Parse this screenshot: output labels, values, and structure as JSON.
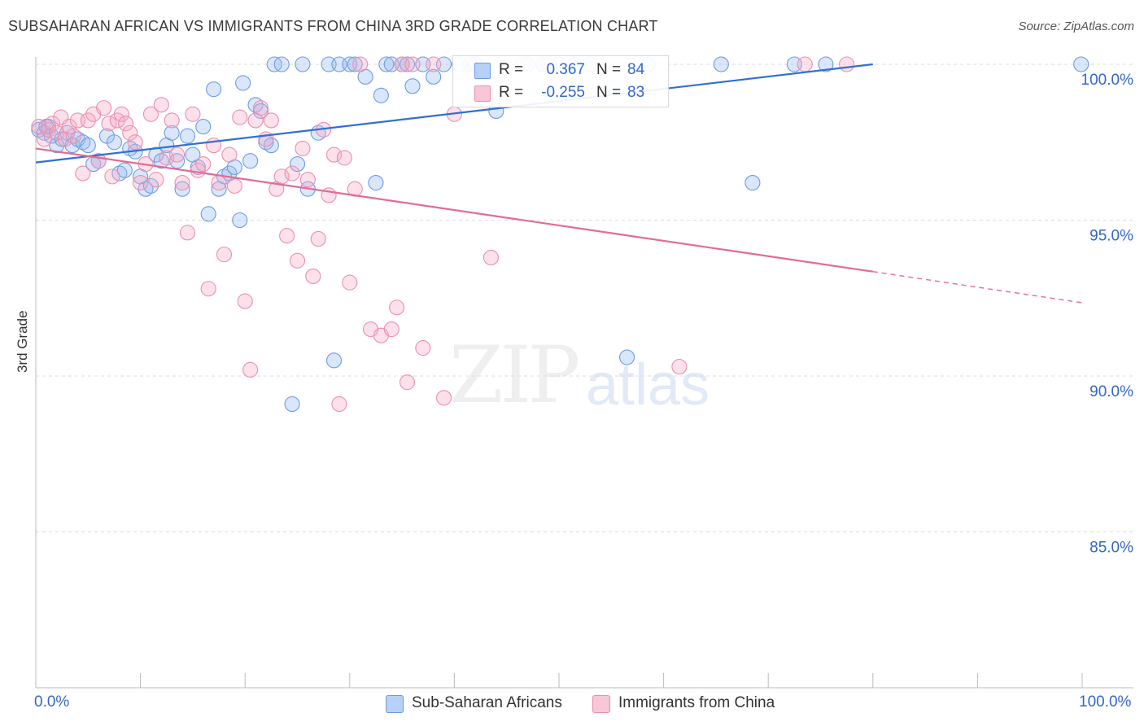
{
  "title": "SUBSAHARAN AFRICAN VS IMMIGRANTS FROM CHINA 3RD GRADE CORRELATION CHART",
  "source": "Source: ZipAtlas.com",
  "watermark": {
    "zip": "ZIP",
    "atlas": "atlas"
  },
  "legend": {
    "r_label": "R =",
    "n_label": "N =",
    "rows": [
      {
        "r": "0.367",
        "n": "84",
        "color": "#6b9be6"
      },
      {
        "r": "-0.255",
        "n": "83",
        "color": "#ec8eac"
      }
    ]
  },
  "bottom_legend": [
    {
      "label": "Sub-Saharan Africans",
      "fill": "#b7d0f5",
      "stroke": "#6b9be6"
    },
    {
      "label": "Immigrants from China",
      "fill": "#f8c6d6",
      "stroke": "#ec8eac"
    }
  ],
  "chart_data": {
    "type": "scatter",
    "title": "SUBSAHARAN AFRICAN VS IMMIGRANTS FROM CHINA 3RD GRADE CORRELATION CHART",
    "xlabel": "",
    "ylabel": "3rd Grade",
    "xlim": [
      0,
      100
    ],
    "ylim": [
      80.5,
      100.5
    ],
    "x_tick_labels": [
      "0.0%",
      "100.0%"
    ],
    "y_ticks": [
      85,
      90,
      95,
      100
    ],
    "y_tick_labels": [
      "85.0%",
      "90.0%",
      "95.0%",
      "100.0%"
    ],
    "grid": true,
    "series": [
      {
        "name": "Sub-Saharan Africans",
        "color": "#6b9be6",
        "trend": {
          "x0": 0,
          "y0": 96.85,
          "x1": 80,
          "y1": 100.0
        },
        "points": [
          [
            0.3,
            97.9
          ],
          [
            0.8,
            97.8
          ],
          [
            1.2,
            98.0
          ],
          [
            1.5,
            97.7
          ],
          [
            2.0,
            97.4
          ],
          [
            2.5,
            97.6
          ],
          [
            3.0,
            97.8
          ],
          [
            3.5,
            97.4
          ],
          [
            4.0,
            97.6
          ],
          [
            4.5,
            97.5
          ],
          [
            5.0,
            97.4
          ],
          [
            5.5,
            96.8
          ],
          [
            6.0,
            96.9
          ],
          [
            6.8,
            97.7
          ],
          [
            7.5,
            97.5
          ],
          [
            8.0,
            96.5
          ],
          [
            8.5,
            96.6
          ],
          [
            9.0,
            97.3
          ],
          [
            9.5,
            97.2
          ],
          [
            10.0,
            96.4
          ],
          [
            10.5,
            96.0
          ],
          [
            11.0,
            96.1
          ],
          [
            11.5,
            97.1
          ],
          [
            12.0,
            96.9
          ],
          [
            12.5,
            97.4
          ],
          [
            13.0,
            97.8
          ],
          [
            13.5,
            96.9
          ],
          [
            14.0,
            96.0
          ],
          [
            14.5,
            97.7
          ],
          [
            15.0,
            97.1
          ],
          [
            15.5,
            96.7
          ],
          [
            16.0,
            98.0
          ],
          [
            16.5,
            95.2
          ],
          [
            17.0,
            99.2
          ],
          [
            17.5,
            96.0
          ],
          [
            18.0,
            96.4
          ],
          [
            18.5,
            96.5
          ],
          [
            19.0,
            96.7
          ],
          [
            19.5,
            95.0
          ],
          [
            19.8,
            99.4
          ],
          [
            20.5,
            96.9
          ],
          [
            21.0,
            98.7
          ],
          [
            21.5,
            98.5
          ],
          [
            22.0,
            97.5
          ],
          [
            22.5,
            97.4
          ],
          [
            22.8,
            100.0
          ],
          [
            23.5,
            100.0
          ],
          [
            24.5,
            89.1
          ],
          [
            25.0,
            96.8
          ],
          [
            25.5,
            100.0
          ],
          [
            26.0,
            96.0
          ],
          [
            27.0,
            97.8
          ],
          [
            28.0,
            100.0
          ],
          [
            28.5,
            90.5
          ],
          [
            29.0,
            100.0
          ],
          [
            30.0,
            100.0
          ],
          [
            30.5,
            100.0
          ],
          [
            31.5,
            99.6
          ],
          [
            32.5,
            96.2
          ],
          [
            33.0,
            99.0
          ],
          [
            33.5,
            100.0
          ],
          [
            34.0,
            100.0
          ],
          [
            35.0,
            100.0
          ],
          [
            35.5,
            100.0
          ],
          [
            36.0,
            99.3
          ],
          [
            37.0,
            100.0
          ],
          [
            38.0,
            99.6
          ],
          [
            39.0,
            100.0
          ],
          [
            40.5,
            100.0
          ],
          [
            42.0,
            100.0
          ],
          [
            44.0,
            98.5
          ],
          [
            47.0,
            100.0
          ],
          [
            48.5,
            100.0
          ],
          [
            50.0,
            100.0
          ],
          [
            51.5,
            100.0
          ],
          [
            53.0,
            100.0
          ],
          [
            56.5,
            90.6
          ],
          [
            58.5,
            100.0
          ],
          [
            65.5,
            100.0
          ],
          [
            68.5,
            96.2
          ],
          [
            72.5,
            100.0
          ],
          [
            75.5,
            100.0
          ],
          [
            99.9,
            100.0
          ],
          [
            1.0,
            98.0
          ]
        ]
      },
      {
        "name": "Immigrants from China",
        "color": "#ec8eac",
        "trend": {
          "x0": 0,
          "y0": 97.3,
          "x1": 80,
          "y1": 93.35
        },
        "trend_dashed": {
          "x0": 80,
          "y0": 93.35,
          "x1": 100,
          "y1": 92.35
        },
        "points": [
          [
            0.3,
            98.0
          ],
          [
            0.8,
            97.6
          ],
          [
            1.2,
            97.9
          ],
          [
            1.6,
            98.1
          ],
          [
            2.0,
            97.8
          ],
          [
            2.4,
            98.3
          ],
          [
            2.8,
            97.6
          ],
          [
            3.2,
            98.0
          ],
          [
            3.6,
            97.7
          ],
          [
            4.0,
            98.2
          ],
          [
            4.5,
            96.5
          ],
          [
            5.0,
            98.2
          ],
          [
            5.5,
            98.4
          ],
          [
            6.0,
            96.9
          ],
          [
            6.5,
            98.6
          ],
          [
            7.0,
            98.1
          ],
          [
            7.3,
            96.4
          ],
          [
            7.8,
            98.2
          ],
          [
            8.2,
            98.4
          ],
          [
            8.6,
            98.1
          ],
          [
            9.0,
            97.8
          ],
          [
            9.5,
            97.5
          ],
          [
            10.0,
            96.2
          ],
          [
            10.5,
            96.8
          ],
          [
            11.0,
            98.4
          ],
          [
            11.5,
            96.3
          ],
          [
            12.0,
            98.7
          ],
          [
            12.5,
            97.0
          ],
          [
            13.0,
            98.2
          ],
          [
            13.5,
            97.1
          ],
          [
            14.0,
            96.2
          ],
          [
            14.5,
            94.6
          ],
          [
            15.0,
            98.4
          ],
          [
            15.5,
            96.6
          ],
          [
            16.0,
            96.8
          ],
          [
            16.5,
            92.8
          ],
          [
            17.0,
            97.4
          ],
          [
            17.5,
            96.2
          ],
          [
            18.0,
            93.9
          ],
          [
            18.5,
            97.1
          ],
          [
            19.0,
            96.1
          ],
          [
            19.5,
            98.3
          ],
          [
            20.0,
            92.4
          ],
          [
            20.5,
            90.2
          ],
          [
            21.0,
            98.2
          ],
          [
            21.5,
            98.6
          ],
          [
            22.0,
            97.6
          ],
          [
            22.5,
            98.2
          ],
          [
            23.0,
            96.0
          ],
          [
            23.5,
            96.4
          ],
          [
            24.0,
            94.5
          ],
          [
            24.5,
            96.5
          ],
          [
            25.0,
            93.7
          ],
          [
            25.5,
            97.3
          ],
          [
            26.0,
            96.3
          ],
          [
            26.5,
            93.2
          ],
          [
            27.0,
            94.4
          ],
          [
            27.5,
            97.9
          ],
          [
            28.0,
            95.8
          ],
          [
            28.5,
            97.1
          ],
          [
            29.0,
            89.1
          ],
          [
            29.5,
            97.0
          ],
          [
            30.0,
            93.0
          ],
          [
            30.5,
            96.0
          ],
          [
            31.0,
            100.0
          ],
          [
            32.0,
            91.5
          ],
          [
            33.0,
            91.3
          ],
          [
            34.0,
            91.5
          ],
          [
            34.5,
            92.2
          ],
          [
            35.0,
            100.0
          ],
          [
            35.5,
            89.8
          ],
          [
            36.0,
            100.0
          ],
          [
            37.0,
            90.9
          ],
          [
            38.0,
            100.0
          ],
          [
            39.0,
            89.3
          ],
          [
            40.0,
            98.4
          ],
          [
            41.5,
            100.0
          ],
          [
            43.5,
            93.8
          ],
          [
            46.5,
            100.0
          ],
          [
            49.0,
            100.0
          ],
          [
            61.5,
            90.3
          ],
          [
            73.5,
            100.0
          ],
          [
            77.5,
            100.0
          ]
        ]
      }
    ]
  }
}
